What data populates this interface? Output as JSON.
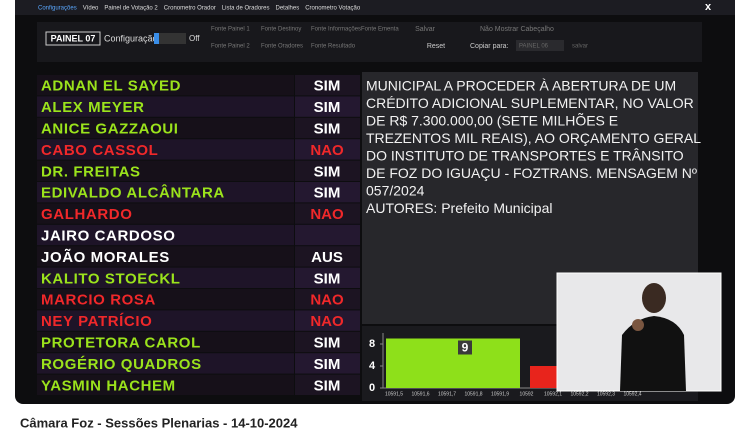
{
  "menu": [
    "Configurações",
    "Vídeo",
    "Painel de Votação 2",
    "Cronometro Orador",
    "Lista de Oradores",
    "Detalhes",
    "Cronometro Votação"
  ],
  "close": "x",
  "toolbar": {
    "panel": "PAINEL 07",
    "config_label": "Configuração:",
    "toggle": "Off",
    "buttons_row1": [
      "Fonte Painel 1",
      "Fonte Destinoy",
      "Fonte Informações",
      "Fonte Ementa"
    ],
    "buttons_row2": [
      "Fonte Painel 2",
      "Fonte Oradores",
      "Fonte Resultado"
    ],
    "save_top": "Salvar",
    "hide_header": "Não Mostrar Cabeçalho",
    "reset": "Reset",
    "copy_label": "Copiar para:",
    "copy_target": "PAINEL 06",
    "save": "salvar"
  },
  "votes": [
    {
      "name": "ADNAN EL SAYED",
      "vote": "SIM",
      "name_color": "#9be31c",
      "vote_color": "#ffffff"
    },
    {
      "name": "ALEX MEYER",
      "vote": "SIM",
      "name_color": "#9be31c",
      "vote_color": "#ffffff"
    },
    {
      "name": "ANICE GAZZAOUI",
      "vote": "SIM",
      "name_color": "#9be31c",
      "vote_color": "#ffffff"
    },
    {
      "name": "CABO CASSOL",
      "vote": "NAO",
      "name_color": "#f0282a",
      "vote_color": "#f0282a"
    },
    {
      "name": "DR. FREITAS",
      "vote": "SIM",
      "name_color": "#9be31c",
      "vote_color": "#ffffff"
    },
    {
      "name": "EDIVALDO ALCÂNTARA",
      "vote": "SIM",
      "name_color": "#9be31c",
      "vote_color": "#ffffff"
    },
    {
      "name": "GALHARDO",
      "vote": "NAO",
      "name_color": "#f0282a",
      "vote_color": "#f0282a"
    },
    {
      "name": "JAIRO CARDOSO",
      "vote": null,
      "name_color": "#ffffff",
      "vote_color": "#ffffff"
    },
    {
      "name": "JOÃO MORALES",
      "vote": "AUS",
      "name_color": "#ffffff",
      "vote_color": "#ffffff"
    },
    {
      "name": "KALITO STOECKL",
      "vote": "SIM",
      "name_color": "#9be31c",
      "vote_color": "#ffffff"
    },
    {
      "name": "MARCIO ROSA",
      "vote": "NAO",
      "name_color": "#f0282a",
      "vote_color": "#f0282a"
    },
    {
      "name": "NEY PATRÍCIO",
      "vote": "NAO",
      "name_color": "#f0282a",
      "vote_color": "#f0282a"
    },
    {
      "name": "PROTETORA CAROL",
      "vote": "SIM",
      "name_color": "#9be31c",
      "vote_color": "#ffffff"
    },
    {
      "name": "ROGÉRIO QUADROS",
      "vote": "SIM",
      "name_color": "#9be31c",
      "vote_color": "#ffffff"
    },
    {
      "name": "YASMIN HACHEM",
      "vote": "SIM",
      "name_color": "#9be31c",
      "vote_color": "#ffffff"
    }
  ],
  "ementa": {
    "lines": [
      "MUNICIPAL A PROCEDER À ABERTURA DE UM",
      "CRÉDITO ADICIONAL SUPLEMENTAR, NO VALOR",
      "DE R$ 7.300.000,00 (SETE MILHÕES E",
      "TREZENTOS MIL REAIS), AO ORÇAMENTO GERAL",
      "DO INSTITUTO DE TRANSPORTES E TRÂNSITO",
      "DE FOZ DO IGUAÇU - FOZTRANS. MENSAGEM Nº",
      "057/2024"
    ],
    "authors": "AUTORES: Prefeito Municipal"
  },
  "chart": {
    "type": "bar",
    "values": [
      9,
      4
    ],
    "colors": [
      "#8ee01a",
      "#e8241c"
    ],
    "ylim": [
      0,
      10
    ],
    "yticks": [
      0,
      4,
      8
    ],
    "xtick_labels": [
      "10591,5",
      "10591,6",
      "10591,7",
      "10591,8",
      "10591,9",
      "10592",
      "10592,1",
      "10592,2",
      "10592,3",
      "10592,4"
    ]
  },
  "caption": "Câmara Foz - Sessões Plenarias - 14-10-2024"
}
